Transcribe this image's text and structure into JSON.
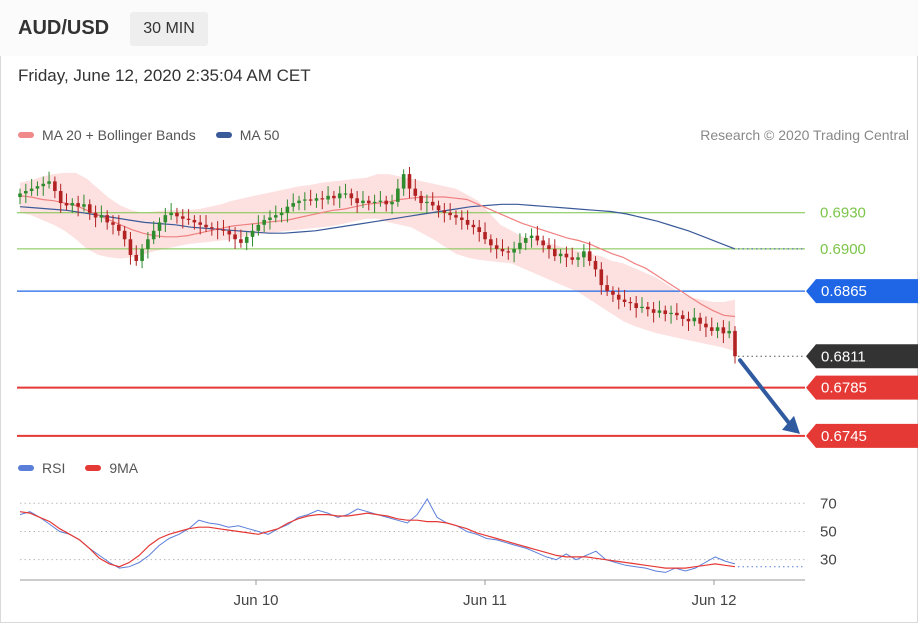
{
  "header": {
    "symbol": "AUD/USD",
    "timeframe": "30 MIN",
    "datetime": "Friday, June 12, 2020 2:35:04 AM CET"
  },
  "legend": {
    "ma20": "MA 20 + Bollinger Bands",
    "ma50": "MA 50",
    "copyright": "Research © 2020 Trading Central"
  },
  "rsi_legend": {
    "rsi": "RSI",
    "ma9": "9MA"
  },
  "colors": {
    "up": "#2e8b2e",
    "down": "#b22222",
    "ma20": "#f08080",
    "band": "#fcd5d5",
    "ma50": "#3a5a99",
    "support": "#e53935",
    "resistance_green": "#7cc44a",
    "pivot_blue": "#1e66e6",
    "rsi": "#5b7fd9",
    "rsi_ma": "#e53935"
  },
  "chart_data": [
    {
      "type": "candlestick",
      "ylim": [
        0.6725,
        0.6982
      ],
      "x_ticks": [
        "Jun 10",
        "Jun 11",
        "Jun 12"
      ],
      "last_price": "0.6811",
      "levels": [
        {
          "value": 0.693,
          "label": "0.6930",
          "kind": "resistance"
        },
        {
          "value": 0.69,
          "label": "0.6900",
          "kind": "resistance"
        },
        {
          "value": 0.6865,
          "label": "0.6865",
          "kind": "pivot"
        },
        {
          "value": 0.6785,
          "label": "0.6785",
          "kind": "support"
        },
        {
          "value": 0.6745,
          "label": "0.6745",
          "kind": "support"
        }
      ],
      "close": [
        0.6946,
        0.6948,
        0.695,
        0.6952,
        0.6954,
        0.6956,
        0.6948,
        0.6938,
        0.6936,
        0.6938,
        0.6935,
        0.6937,
        0.693,
        0.6926,
        0.6928,
        0.6922,
        0.692,
        0.6915,
        0.6908,
        0.6895,
        0.689,
        0.69,
        0.6908,
        0.6915,
        0.6922,
        0.6928,
        0.693,
        0.6927,
        0.6925,
        0.6924,
        0.6922,
        0.692,
        0.6918,
        0.6917,
        0.6916,
        0.6915,
        0.6912,
        0.6908,
        0.6905,
        0.691,
        0.6915,
        0.692,
        0.6924,
        0.6926,
        0.6928,
        0.693,
        0.6935,
        0.6938,
        0.694,
        0.6941,
        0.694,
        0.6942,
        0.6941,
        0.6944,
        0.6942,
        0.6946,
        0.6946,
        0.6942,
        0.6938,
        0.694,
        0.6938,
        0.6939,
        0.694,
        0.6937,
        0.6939,
        0.695,
        0.6962,
        0.695,
        0.6944,
        0.6938,
        0.6939,
        0.6936,
        0.6932,
        0.693,
        0.6928,
        0.6926,
        0.6924,
        0.692,
        0.6918,
        0.6914,
        0.6908,
        0.6903,
        0.69,
        0.6898,
        0.6897,
        0.69,
        0.6905,
        0.6909,
        0.6911,
        0.6907,
        0.6903,
        0.69,
        0.6894,
        0.6896,
        0.6893,
        0.6891,
        0.6893,
        0.6898,
        0.689,
        0.6883,
        0.687,
        0.6865,
        0.6862,
        0.6858,
        0.6856,
        0.6855,
        0.6851,
        0.6852,
        0.685,
        0.6847,
        0.6849,
        0.6846,
        0.6847,
        0.6845,
        0.6842,
        0.684,
        0.6843,
        0.6838,
        0.6835,
        0.6832,
        0.6835,
        0.683,
        0.6832,
        0.6811
      ],
      "ma20": [
        0.6944,
        0.6943,
        0.6941,
        0.694,
        0.6938,
        0.6936,
        0.6932,
        0.6928,
        0.6924,
        0.692,
        0.6916,
        0.6913,
        0.6911,
        0.691,
        0.691,
        0.6911,
        0.6913,
        0.6915,
        0.6917,
        0.6919,
        0.692,
        0.6921,
        0.6922,
        0.6923,
        0.6924,
        0.6926,
        0.6928,
        0.693,
        0.6932,
        0.6933,
        0.6935,
        0.6937,
        0.6938,
        0.6939,
        0.6941,
        0.6942,
        0.6943,
        0.6943,
        0.6943,
        0.6942,
        0.6941,
        0.6937,
        0.6933,
        0.6929,
        0.6925,
        0.6921,
        0.6918,
        0.6915,
        0.6912,
        0.6909,
        0.6907,
        0.6904,
        0.69,
        0.6896,
        0.6893,
        0.6888,
        0.6884,
        0.6878,
        0.6872,
        0.6866,
        0.686,
        0.6854,
        0.6849,
        0.6845,
        0.6844
      ],
      "ma50": [
        0.6935,
        0.6934,
        0.6933,
        0.6932,
        0.693,
        0.6928,
        0.6926,
        0.6924,
        0.6922,
        0.6921,
        0.692,
        0.6918,
        0.6917,
        0.6916,
        0.6915,
        0.6914,
        0.6913,
        0.6913,
        0.6914,
        0.6915,
        0.6917,
        0.6919,
        0.6921,
        0.6923,
        0.6925,
        0.6927,
        0.6929,
        0.6931,
        0.6933,
        0.6935,
        0.6936,
        0.6937,
        0.6937,
        0.6936,
        0.6935,
        0.6934,
        0.6933,
        0.6932,
        0.6931,
        0.6929,
        0.6926,
        0.6923,
        0.6919,
        0.6915,
        0.691,
        0.6905,
        0.69
      ],
      "bb_upper": [
        0.6955,
        0.6957,
        0.696,
        0.6962,
        0.6963,
        0.6963,
        0.6958,
        0.695,
        0.6942,
        0.6936,
        0.6932,
        0.693,
        0.6931,
        0.6932,
        0.6932,
        0.6932,
        0.6933,
        0.6935,
        0.6937,
        0.694,
        0.6942,
        0.6944,
        0.6946,
        0.6948,
        0.695,
        0.6952,
        0.6953,
        0.6955,
        0.6956,
        0.6957,
        0.6958,
        0.6959,
        0.6962,
        0.6962,
        0.696,
        0.6958,
        0.6956,
        0.6954,
        0.6952,
        0.695,
        0.6945,
        0.694,
        0.693,
        0.692,
        0.6915,
        0.691,
        0.6908,
        0.6906,
        0.6903,
        0.69,
        0.6898,
        0.6896,
        0.6894,
        0.689,
        0.6888,
        0.6884,
        0.688,
        0.6876,
        0.687,
        0.6864,
        0.686,
        0.6858,
        0.6856,
        0.6856,
        0.6858
      ],
      "bb_lower": [
        0.693,
        0.6928,
        0.6924,
        0.692,
        0.6915,
        0.6908,
        0.69,
        0.6895,
        0.6893,
        0.6892,
        0.6893,
        0.6895,
        0.6898,
        0.69,
        0.6902,
        0.6904,
        0.6905,
        0.6906,
        0.6907,
        0.6908,
        0.691,
        0.6912,
        0.6913,
        0.6914,
        0.6915,
        0.6916,
        0.6917,
        0.6918,
        0.6919,
        0.6921,
        0.6923,
        0.6925,
        0.6925,
        0.6922,
        0.692,
        0.6918,
        0.6913,
        0.6908,
        0.6902,
        0.6896,
        0.6893,
        0.6891,
        0.689,
        0.6889,
        0.6888,
        0.6884,
        0.688,
        0.6876,
        0.6872,
        0.6868,
        0.6864,
        0.6858,
        0.6852,
        0.6846,
        0.684,
        0.6836,
        0.6833,
        0.683,
        0.6828,
        0.6826,
        0.6824,
        0.6822,
        0.682,
        0.6818,
        0.6815
      ]
    },
    {
      "type": "line",
      "series_names": [
        "RSI",
        "9MA"
      ],
      "ylim": [
        17,
        78
      ],
      "y_ticks": [
        70,
        50,
        30
      ],
      "rsi": [
        62,
        64,
        60,
        55,
        50,
        48,
        44,
        38,
        33,
        28,
        24,
        25,
        28,
        33,
        40,
        45,
        48,
        52,
        58,
        56,
        55,
        53,
        54,
        52,
        50,
        48,
        52,
        55,
        60,
        62,
        65,
        63,
        60,
        62,
        66,
        64,
        62,
        60,
        58,
        56,
        62,
        73,
        60,
        56,
        54,
        50,
        48,
        45,
        44,
        42,
        40,
        38,
        35,
        32,
        30,
        34,
        30,
        33,
        36,
        30,
        28,
        26,
        25,
        24,
        22,
        21,
        24,
        22,
        24,
        28,
        32,
        29,
        27
      ],
      "rsi_ma": [
        64,
        63,
        60,
        57,
        52,
        48,
        44,
        38,
        31,
        27,
        25,
        28,
        33,
        40,
        45,
        48,
        50,
        52,
        53,
        53,
        52,
        51,
        50,
        49,
        48,
        50,
        52,
        56,
        59,
        61,
        62,
        62,
        61,
        61,
        62,
        63,
        62,
        61,
        59,
        58,
        58,
        57,
        57,
        56,
        54,
        52,
        49,
        47,
        45,
        43,
        41,
        39,
        37,
        35,
        33,
        32,
        32,
        32,
        31,
        30,
        29,
        28,
        27,
        26,
        25,
        24,
        24,
        24,
        25,
        26,
        27,
        26,
        25
      ]
    }
  ]
}
